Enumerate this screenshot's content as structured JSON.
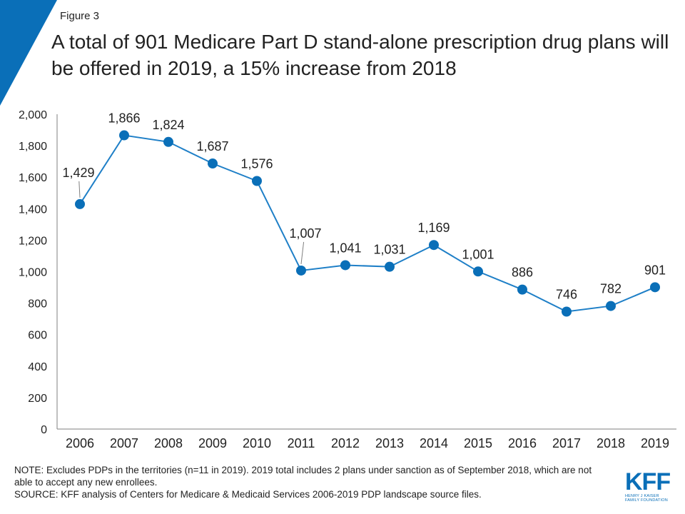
{
  "header": {
    "figure_label": "Figure 3",
    "title": "A total of 901 Medicare Part D stand-alone prescription drug plans will be offered in 2019, a 15% increase from 2018"
  },
  "colors": {
    "accent": "#0a6fb8",
    "line": "#1e7fc7",
    "marker": "#0a6fb8",
    "axis": "#7f7f7f",
    "text": "#222222"
  },
  "chart_data": {
    "type": "line",
    "title": "A total of 901 Medicare Part D stand-alone prescription drug plans will be offered in 2019, a 15% increase from 2018",
    "xlabel": "",
    "ylabel": "",
    "ylim": [
      0,
      2000
    ],
    "yticks": [
      0,
      200,
      400,
      600,
      800,
      1000,
      1200,
      1400,
      1600,
      1800,
      2000
    ],
    "ytick_labels": [
      "0",
      "200",
      "400",
      "600",
      "800",
      "1,000",
      "1,200",
      "1,400",
      "1,600",
      "1,800",
      "2,000"
    ],
    "grid": false,
    "legend": "none",
    "categories": [
      "2006",
      "2007",
      "2008",
      "2009",
      "2010",
      "2011",
      "2012",
      "2013",
      "2014",
      "2015",
      "2016",
      "2017",
      "2018",
      "2019"
    ],
    "series": [
      {
        "values": [
          1429,
          1866,
          1824,
          1687,
          1576,
          1007,
          1041,
          1031,
          1169,
          1001,
          886,
          746,
          782,
          901
        ],
        "data_labels": [
          "1,429",
          "1,866",
          "1,824",
          "1,687",
          "1,576",
          "1,007",
          "1,041",
          "1,031",
          "1,169",
          "1,001",
          "886",
          "746",
          "782",
          "901"
        ]
      }
    ]
  },
  "footer": {
    "note": "NOTE: Excludes PDPs in the territories (n=11 in 2019). 2019 total includes 2 plans under sanction as of September 2018, which are not able to accept any new enrollees.",
    "source": "SOURCE: KFF analysis of Centers for Medicare & Medicaid Services 2006-2019 PDP landscape source files.",
    "logo_text": "KFF",
    "logo_subtext_1": "HENRY J KAISER",
    "logo_subtext_2": "FAMILY FOUNDATION"
  }
}
